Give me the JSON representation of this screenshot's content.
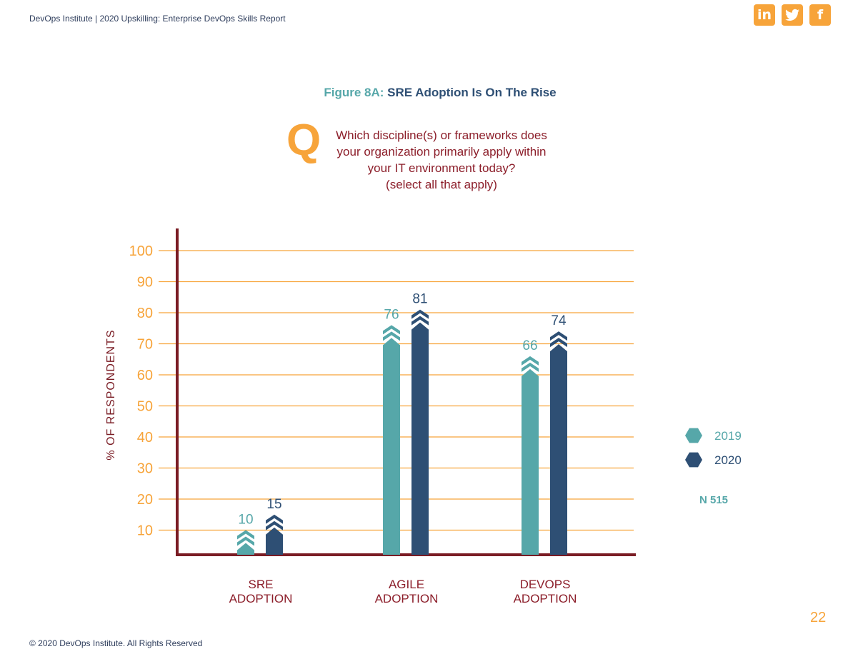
{
  "header": {
    "text": "DevOps Institute | 2020 Upskilling: Enterprise DevOps Skills Report"
  },
  "social": [
    {
      "icon": "linkedin-icon",
      "glyph": "in"
    },
    {
      "icon": "twitter-icon",
      "glyph": "☀"
    },
    {
      "icon": "facebook-icon",
      "glyph": "f"
    }
  ],
  "figure": {
    "label": "Figure 8A:",
    "title": "SRE Adoption Is On The Rise"
  },
  "question": {
    "letter": "Q",
    "lines": [
      "Which discipline(s) or frameworks does",
      "your organization primarily apply within",
      "your IT environment today?",
      "(select all that apply)"
    ]
  },
  "chart_data": {
    "type": "bar",
    "ylabel": "% OF RESPONDENTS",
    "yticks": [
      10,
      20,
      30,
      40,
      50,
      60,
      70,
      80,
      90,
      100
    ],
    "ylim": [
      0,
      100
    ],
    "grid": true,
    "legend_position": "right",
    "categories": [
      [
        "SRE",
        "ADOPTION"
      ],
      [
        "AGILE",
        "ADOPTION"
      ],
      [
        "DEVOPS",
        "ADOPTION"
      ]
    ],
    "series": [
      {
        "name": "2019",
        "values": [
          10,
          76,
          66
        ],
        "color": "#56a7a9"
      },
      {
        "name": "2020",
        "values": [
          15,
          81,
          74
        ],
        "color": "#2e4f74"
      }
    ],
    "note": "N 515"
  },
  "colors": {
    "axis": "#7a1c24",
    "grid": "#f7a43a",
    "tick": "#f7a43a",
    "category": "#8c1e2a",
    "accent": "#f7a43a"
  },
  "footer": {
    "text": "© 2020 DevOps Institute. All Rights Reserved"
  },
  "page_number": "22"
}
